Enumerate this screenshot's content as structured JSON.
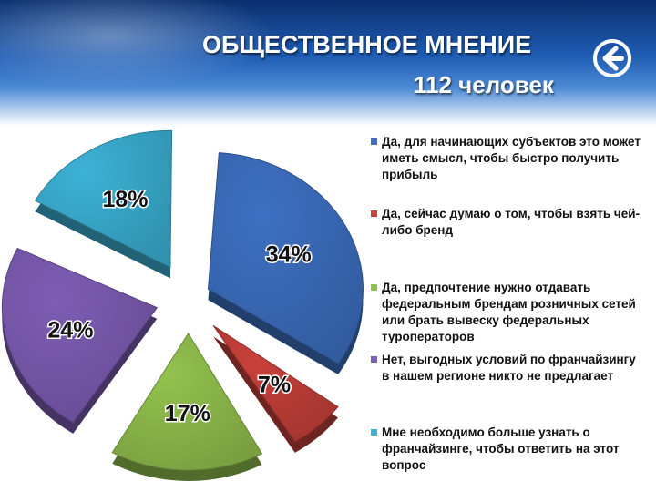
{
  "header": {
    "title": "ОБЩЕСТВЕННОЕ МНЕНИЕ",
    "subtitle": "112 человек"
  },
  "chart_data": {
    "type": "pie",
    "exploded": true,
    "title": "",
    "slices": [
      {
        "label": "Да, для начинающих субъектов это может иметь смысл, чтобы быстро получить прибыль",
        "value": 34,
        "display": "34%",
        "color": "#3d70c2"
      },
      {
        "label": "Да, сейчас думаю о том, чтобы взять чей-либо бренд",
        "value": 7,
        "display": "7%",
        "color": "#c8413a"
      },
      {
        "label": "Да, предпочтение нужно отдавать федеральным брендам розничных сетей или брать вывеску федеральных туроператоров",
        "value": 17,
        "display": "17%",
        "color": "#93c24e"
      },
      {
        "label": "Нет, выгодных условий по франчайзингу в нашем регионе никто не предлагает",
        "value": 24,
        "display": "24%",
        "color": "#7e5db4"
      },
      {
        "label": "Мне необходимо больше узнать о франчайзинге, чтобы ответить на этот вопрос",
        "value": 18,
        "display": "18%",
        "color": "#3cb2d6"
      }
    ],
    "legend_position": "right"
  }
}
